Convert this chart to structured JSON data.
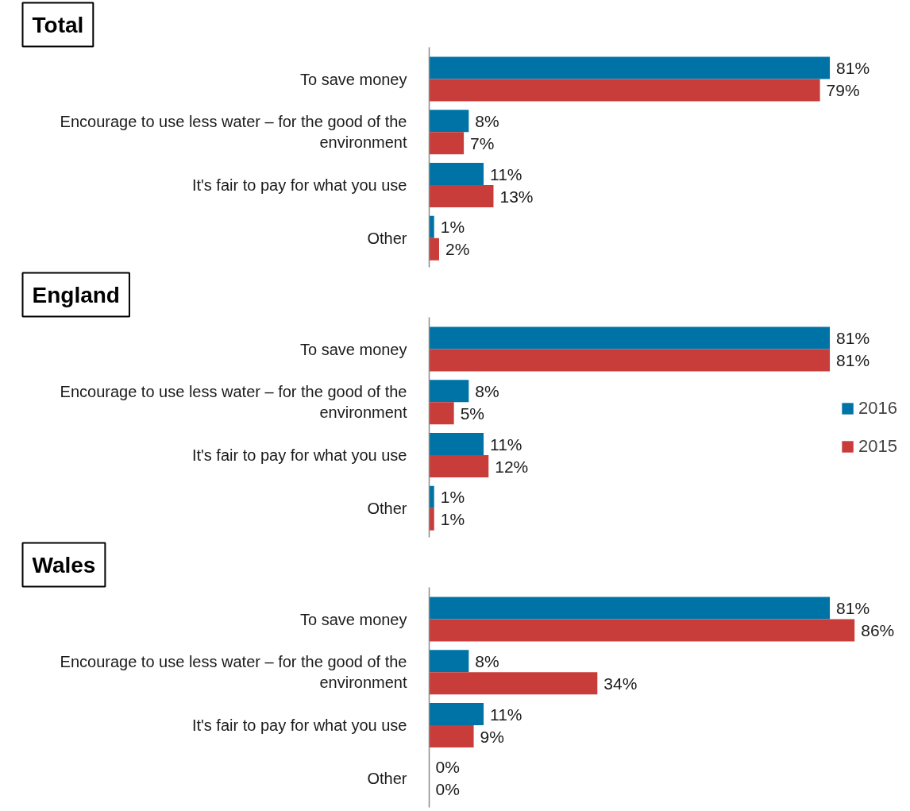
{
  "chart_data": [
    {
      "type": "bar",
      "orientation": "horizontal",
      "title": "Total",
      "tick_labels": "y",
      "categories": [
        "To save money",
        "Encourage to use less water – for the good of the environment",
        "It's fair to pay for what you use",
        "Other"
      ],
      "series": [
        {
          "color": "#0073a6",
          "values": [
            81,
            8,
            11,
            1
          ],
          "value_labels": [
            "81%",
            "8%",
            "11%",
            "1%"
          ]
        },
        {
          "color": "#c83c3a",
          "values": [
            79,
            7,
            13,
            2
          ],
          "value_labels": [
            "79%",
            "7%",
            "13%",
            "2%"
          ]
        }
      ]
    },
    {
      "type": "bar",
      "orientation": "horizontal",
      "title": "England",
      "tick_labels": "y",
      "legend": "right",
      "categories": [
        "To save money",
        "Encourage to use less water – for the good of the environment",
        "It's fair to pay for what you use",
        "Other"
      ],
      "series": [
        {
          "name": "2016",
          "color": "#0073a6",
          "values": [
            81,
            8,
            11,
            1
          ],
          "value_labels": [
            "81%",
            "8%",
            "11%",
            "1%"
          ]
        },
        {
          "name": "2015",
          "color": "#c83c3a",
          "values": [
            81,
            5,
            12,
            1
          ],
          "value_labels": [
            "81%",
            "5%",
            "12%",
            "1%"
          ]
        }
      ]
    },
    {
      "type": "bar",
      "orientation": "horizontal",
      "title": "Wales",
      "tick_labels": "y",
      "categories": [
        "To save money",
        "Encourage to use less water – for the good of the environment",
        "It's fair to pay for what you use",
        "Other"
      ],
      "series": [
        {
          "color": "#0073a6",
          "values": [
            81,
            8,
            11,
            0
          ],
          "value_labels": [
            "81%",
            "8%",
            "11%",
            "0%"
          ]
        },
        {
          "color": "#c83c3a",
          "values": [
            86,
            34,
            9,
            0
          ],
          "value_labels": [
            "86%",
            "34%",
            "9%",
            "0%"
          ]
        }
      ]
    }
  ]
}
